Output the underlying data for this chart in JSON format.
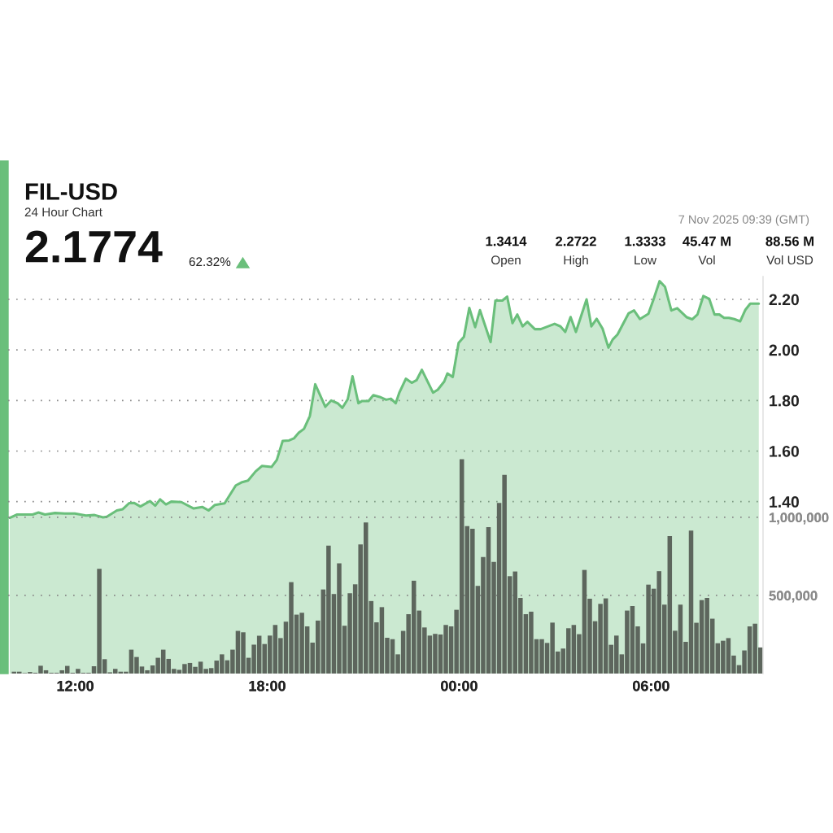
{
  "chart_data": {
    "type": "area",
    "title": "FIL-USD",
    "subtitle": "24 Hour Chart",
    "annotations": [
      "2.1774",
      "62.32%",
      "1.3414",
      "Open",
      "2.2722",
      "High",
      "1.3333",
      "Low",
      "45.47 M",
      "Vol",
      "88.56 M",
      "Vol USD",
      "7 Nov 2025 09:39 (GMT)"
    ],
    "series": [
      {
        "axis": "y",
        "color": "#6abf7b",
        "x": [
          "2025-11-06T09:57",
          "2025-11-06T10:11",
          "2025-11-06T10:40",
          "2025-11-06T10:51",
          "2025-11-06T11:03",
          "2025-11-06T11:22",
          "2025-11-06T11:40",
          "2025-11-06T11:59",
          "2025-11-06T12:20",
          "2025-11-06T12:36",
          "2025-11-06T12:52",
          "2025-11-06T12:59",
          "2025-11-06T13:18",
          "2025-11-06T13:29",
          "2025-11-06T13:41",
          "2025-11-06T13:50",
          "2025-11-06T14:02",
          "2025-11-06T14:20",
          "2025-11-06T14:30",
          "2025-11-06T14:39",
          "2025-11-06T14:50",
          "2025-11-06T15:00",
          "2025-11-06T15:19",
          "2025-11-06T15:42",
          "2025-11-06T15:58",
          "2025-11-06T16:10",
          "2025-11-06T16:22",
          "2025-11-06T16:40",
          "2025-11-06T17:01",
          "2025-11-06T17:13",
          "2025-11-06T17:24",
          "2025-11-06T17:38",
          "2025-11-06T17:50",
          "2025-11-06T18:08",
          "2025-11-06T18:18",
          "2025-11-06T18:29",
          "2025-11-06T18:41",
          "2025-11-06T18:50",
          "2025-11-06T18:59",
          "2025-11-06T19:09",
          "2025-11-06T19:20",
          "2025-11-06T19:30",
          "2025-11-06T19:49",
          "2025-11-06T20:00",
          "2025-11-06T20:12",
          "2025-11-06T20:21",
          "2025-11-06T20:31",
          "2025-11-06T20:40",
          "2025-11-06T20:51",
          "2025-11-06T20:58",
          "2025-11-06T21:10",
          "2025-11-06T21:19",
          "2025-11-06T21:31",
          "2025-11-06T21:43",
          "2025-11-06T21:52",
          "2025-11-06T22:01",
          "2025-11-06T22:08",
          "2025-11-06T22:20",
          "2025-11-06T22:31",
          "2025-11-06T22:40",
          "2025-11-06T22:50",
          "2025-11-06T23:11",
          "2025-11-06T23:20",
          "2025-11-06T23:32",
          "2025-11-06T23:38",
          "2025-11-06T23:48",
          "2025-11-06T23:59",
          "2025-11-07T00:09",
          "2025-11-07T00:19",
          "2025-11-07T00:30",
          "2025-11-07T00:39",
          "2025-11-07T00:59",
          "2025-11-07T01:08",
          "2025-11-07T01:21",
          "2025-11-07T01:30",
          "2025-11-07T01:40",
          "2025-11-07T01:49",
          "2025-11-07T01:59",
          "2025-11-07T02:08",
          "2025-11-07T02:22",
          "2025-11-07T02:33",
          "2025-11-07T02:59",
          "2025-11-07T03:10",
          "2025-11-07T03:19",
          "2025-11-07T03:29",
          "2025-11-07T03:39",
          "2025-11-07T03:59",
          "2025-11-07T04:08",
          "2025-11-07T04:18",
          "2025-11-07T04:29",
          "2025-11-07T04:40",
          "2025-11-07T04:48",
          "2025-11-07T04:57",
          "2025-11-07T05:18",
          "2025-11-07T05:28",
          "2025-11-07T05:39",
          "2025-11-07T05:55",
          "2025-11-07T06:05",
          "2025-11-07T06:16",
          "2025-11-07T06:26",
          "2025-11-07T06:38",
          "2025-11-07T06:49",
          "2025-11-07T07:07",
          "2025-11-07T07:17",
          "2025-11-07T07:27",
          "2025-11-07T07:38",
          "2025-11-07T07:49",
          "2025-11-07T07:59",
          "2025-11-07T08:08",
          "2025-11-07T08:17",
          "2025-11-07T08:26",
          "2025-11-07T08:36",
          "2025-11-07T08:47",
          "2025-11-07T08:57",
          "2025-11-07T09:06",
          "2025-11-07T09:22"
        ],
        "values": [
          1.336,
          1.349,
          1.349,
          1.357,
          1.349,
          1.355,
          1.353,
          1.353,
          1.345,
          1.347,
          1.338,
          1.34,
          1.365,
          1.37,
          1.394,
          1.395,
          1.381,
          1.402,
          1.384,
          1.409,
          1.389,
          1.4,
          1.398,
          1.373,
          1.379,
          1.365,
          1.387,
          1.393,
          1.464,
          1.477,
          1.483,
          1.519,
          1.541,
          1.537,
          1.565,
          1.64,
          1.642,
          1.65,
          1.672,
          1.688,
          1.739,
          1.864,
          1.775,
          1.8,
          1.789,
          1.771,
          1.805,
          1.896,
          1.789,
          1.798,
          1.798,
          1.821,
          1.814,
          1.803,
          1.807,
          1.789,
          1.832,
          1.886,
          1.87,
          1.88,
          1.921,
          1.831,
          1.843,
          1.875,
          1.907,
          1.893,
          2.028,
          2.052,
          2.166,
          2.09,
          2.157,
          2.031,
          2.195,
          2.195,
          2.211,
          2.106,
          2.14,
          2.093,
          2.111,
          2.082,
          2.082,
          2.103,
          2.093,
          2.071,
          2.13,
          2.071,
          2.2,
          2.093,
          2.123,
          2.084,
          2.009,
          2.041,
          2.061,
          2.145,
          2.156,
          2.122,
          2.143,
          2.202,
          2.272,
          2.25,
          2.156,
          2.165,
          2.129,
          2.121,
          2.14,
          2.213,
          2.202,
          2.14,
          2.14,
          2.127,
          2.127,
          2.122,
          2.113,
          2.159,
          2.183,
          2.183
        ]
      },
      {
        "type": "bar",
        "axis": "y2",
        "color": "#5d665d",
        "x": [
          "2025-11-06T10:05",
          "2025-11-06T10:15",
          "2025-11-06T10:25",
          "2025-11-06T10:35",
          "2025-11-06T10:45",
          "2025-11-06T10:55",
          "2025-11-06T11:05",
          "2025-11-06T11:15",
          "2025-11-06T11:25",
          "2025-11-06T11:35",
          "2025-11-06T11:45",
          "2025-11-06T11:55",
          "2025-11-06T12:05",
          "2025-11-06T12:15",
          "2025-11-06T12:25",
          "2025-11-06T12:35",
          "2025-11-06T12:45",
          "2025-11-06T12:55",
          "2025-11-06T13:05",
          "2025-11-06T13:15",
          "2025-11-06T13:25",
          "2025-11-06T13:35",
          "2025-11-06T13:45",
          "2025-11-06T13:55",
          "2025-11-06T14:05",
          "2025-11-06T14:15",
          "2025-11-06T14:25",
          "2025-11-06T14:35",
          "2025-11-06T14:45",
          "2025-11-06T14:55",
          "2025-11-06T15:05",
          "2025-11-06T15:15",
          "2025-11-06T15:25",
          "2025-11-06T15:35",
          "2025-11-06T15:45",
          "2025-11-06T15:55",
          "2025-11-06T16:05",
          "2025-11-06T16:15",
          "2025-11-06T16:25",
          "2025-11-06T16:35",
          "2025-11-06T16:45",
          "2025-11-06T16:55",
          "2025-11-06T17:05",
          "2025-11-06T17:15",
          "2025-11-06T17:25",
          "2025-11-06T17:35",
          "2025-11-06T17:45",
          "2025-11-06T17:55",
          "2025-11-06T18:05",
          "2025-11-06T18:15",
          "2025-11-06T18:25",
          "2025-11-06T18:35",
          "2025-11-06T18:45",
          "2025-11-06T18:55",
          "2025-11-06T19:05",
          "2025-11-06T19:15",
          "2025-11-06T19:25",
          "2025-11-06T19:35",
          "2025-11-06T19:45",
          "2025-11-06T19:55",
          "2025-11-06T20:05",
          "2025-11-06T20:15",
          "2025-11-06T20:25",
          "2025-11-06T20:35",
          "2025-11-06T20:45",
          "2025-11-06T20:55",
          "2025-11-06T21:05",
          "2025-11-06T21:15",
          "2025-11-06T21:25",
          "2025-11-06T21:35",
          "2025-11-06T21:45",
          "2025-11-06T21:55",
          "2025-11-06T22:05",
          "2025-11-06T22:15",
          "2025-11-06T22:25",
          "2025-11-06T22:35",
          "2025-11-06T22:45",
          "2025-11-06T22:55",
          "2025-11-06T23:05",
          "2025-11-06T23:15",
          "2025-11-06T23:25",
          "2025-11-06T23:35",
          "2025-11-06T23:45",
          "2025-11-06T23:55",
          "2025-11-07T00:05",
          "2025-11-07T00:15",
          "2025-11-07T00:25",
          "2025-11-07T00:35",
          "2025-11-07T00:45",
          "2025-11-07T00:55",
          "2025-11-07T01:05",
          "2025-11-07T01:15",
          "2025-11-07T01:25",
          "2025-11-07T01:35",
          "2025-11-07T01:45",
          "2025-11-07T01:55",
          "2025-11-07T02:05",
          "2025-11-07T02:15",
          "2025-11-07T02:25",
          "2025-11-07T02:35",
          "2025-11-07T02:45",
          "2025-11-07T02:55",
          "2025-11-07T03:05",
          "2025-11-07T03:15",
          "2025-11-07T03:25",
          "2025-11-07T03:35",
          "2025-11-07T03:45",
          "2025-11-07T03:55",
          "2025-11-07T04:05",
          "2025-11-07T04:15",
          "2025-11-07T04:25",
          "2025-11-07T04:35",
          "2025-11-07T04:45",
          "2025-11-07T04:55",
          "2025-11-07T05:05",
          "2025-11-07T05:15",
          "2025-11-07T05:25",
          "2025-11-07T05:35",
          "2025-11-07T05:45",
          "2025-11-07T05:55",
          "2025-11-07T06:05",
          "2025-11-07T06:15",
          "2025-11-07T06:25",
          "2025-11-07T06:35",
          "2025-11-07T06:45",
          "2025-11-07T06:55",
          "2025-11-07T07:05",
          "2025-11-07T07:15",
          "2025-11-07T07:25",
          "2025-11-07T07:35",
          "2025-11-07T07:45",
          "2025-11-07T07:55",
          "2025-11-07T08:05",
          "2025-11-07T08:15",
          "2025-11-07T08:25",
          "2025-11-07T08:35",
          "2025-11-07T08:45",
          "2025-11-07T08:55",
          "2025-11-07T09:05",
          "2025-11-07T09:15",
          "2025-11-07T09:25"
        ],
        "values": [
          12000,
          12000,
          3000,
          10000,
          5000,
          50000,
          21000,
          5000,
          5000,
          21000,
          49000,
          5000,
          30000,
          5000,
          5000,
          47000,
          670000,
          92000,
          8000,
          30000,
          12000,
          12000,
          153000,
          106000,
          45000,
          21000,
          52000,
          101000,
          153000,
          94000,
          30000,
          24000,
          61000,
          68000,
          43000,
          76000,
          30000,
          35000,
          83000,
          123000,
          85000,
          153000,
          273000,
          264000,
          101000,
          185000,
          242000,
          189000,
          243000,
          311000,
          227000,
          332000,
          585000,
          377000,
          389000,
          302000,
          198000,
          339000,
          538000,
          819000,
          509000,
          705000,
          306000,
          514000,
          571000,
          826000,
          967000,
          464000,
          328000,
          425000,
          229000,
          220000,
          123000,
          273000,
          380000,
          594000,
          403000,
          295000,
          243000,
          254000,
          250000,
          311000,
          302000,
          408000,
          1371000,
          943000,
          927000,
          561000,
          746000,
          937000,
          714000,
          1092000,
          1271000,
          623000,
          653000,
          484000,
          380000,
          396000,
          220000,
          220000,
          196000,
          326000,
          141000,
          160000,
          290000,
          311000,
          252000,
          663000,
          479000,
          335000,
          446000,
          481000,
          184000,
          243000,
          123000,
          403000,
          432000,
          302000,
          193000,
          569000,
          543000,
          655000,
          441000,
          880000,
          274000,
          441000,
          203000,
          915000,
          325000,
          470000,
          484000,
          351000,
          194000,
          210000,
          227000,
          115000,
          54000,
          148000,
          302000,
          319000,
          167000
        ]
      }
    ],
    "xlim": [
      "2025-11-06T09:54",
      "2025-11-07T09:30"
    ],
    "xticks": [
      {
        "value": "2025-11-06T12:00",
        "label": "12:00"
      },
      {
        "value": "2025-11-06T18:00",
        "label": "18:00"
      },
      {
        "value": "2025-11-07T00:00",
        "label": "00:00"
      },
      {
        "value": "2025-11-07T06:00",
        "label": "06:00"
      }
    ],
    "ylim": [
      0.72,
      2.29
    ],
    "yticks": [
      {
        "value": 1.4,
        "label": "1.40"
      },
      {
        "value": 1.6,
        "label": "1.60"
      },
      {
        "value": 1.8,
        "label": "1.80"
      },
      {
        "value": 2.0,
        "label": "2.00"
      },
      {
        "value": 2.2,
        "label": "2.20"
      }
    ],
    "y2lim": [
      0,
      2540000
    ],
    "y2ticks": [
      {
        "value": 500000,
        "label": "500,000"
      },
      {
        "value": 1000000,
        "label": "1,000,000"
      }
    ],
    "grid": "y"
  }
}
